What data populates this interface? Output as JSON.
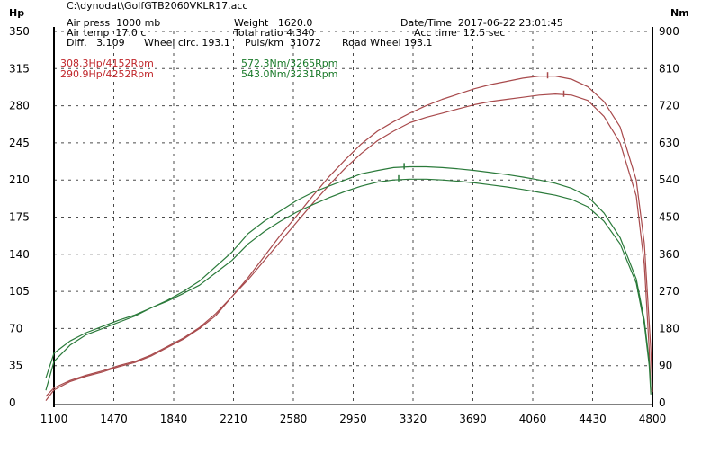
{
  "file_path": "C:\\dynodat\\GolfGTB2060VKLR17.acc",
  "info": [
    {
      "label": "Air press",
      "value": "1000 mb"
    },
    {
      "label": "Air temp",
      "value": "17.0 c"
    },
    {
      "label": "Diff.",
      "value": "3.109"
    },
    {
      "label": "Wheel circ.",
      "value": "193.1"
    },
    {
      "label": "Weight",
      "value": "1620.0"
    },
    {
      "label": "Total ratio",
      "value": "4.340"
    },
    {
      "label": "Puls/km",
      "value": "31072"
    },
    {
      "label": "Road Wheel",
      "value": "193.1"
    },
    {
      "label": "Date/Time",
      "value": "2017-06-22 23:01:45"
    },
    {
      "label": "Acc time",
      "value": "12.5 sec"
    }
  ],
  "annotations": {
    "power": [
      "308.3Hp/4152Rpm",
      "290.9Hp/4252Rpm"
    ],
    "torque": [
      "572.3Nm/3265Rpm",
      "543.0Nm/3231Rpm"
    ]
  },
  "colors": {
    "power": "#a84a4c",
    "torque": "#2a7a3a",
    "power_text": "#c0262b",
    "torque_text": "#1a7a2a"
  },
  "chart_data": {
    "type": "line",
    "x_ticks": [
      1100,
      1470,
      1840,
      2210,
      2580,
      2950,
      3320,
      3690,
      4060,
      4430,
      4800
    ],
    "xlim": [
      1100,
      4800
    ],
    "left_axis": {
      "label": "Hp",
      "ticks": [
        0,
        35,
        70,
        105,
        140,
        175,
        210,
        245,
        280,
        315,
        350
      ],
      "lim": [
        0,
        350
      ]
    },
    "right_axis": {
      "label": "Nm",
      "ticks": [
        0,
        90,
        180,
        270,
        360,
        450,
        540,
        630,
        720,
        810,
        900
      ],
      "lim": [
        0,
        900
      ]
    },
    "grid": true,
    "series": [
      {
        "kind": "power",
        "axis": "left",
        "peak": [
          4152,
          308.3
        ],
        "x": [
          1050,
          1100,
          1200,
          1300,
          1400,
          1500,
          1600,
          1700,
          1800,
          1900,
          2000,
          2100,
          2200,
          2300,
          2400,
          2500,
          2600,
          2700,
          2800,
          2900,
          3000,
          3100,
          3200,
          3300,
          3400,
          3500,
          3600,
          3700,
          3800,
          3900,
          4000,
          4100,
          4200,
          4300,
          4400,
          4500,
          4600,
          4700,
          4750,
          4790,
          4800
        ],
        "y": [
          2,
          12,
          20,
          25,
          29,
          34,
          38,
          44,
          52,
          60,
          70,
          82,
          100,
          118,
          138,
          158,
          176,
          195,
          213,
          229,
          244,
          256,
          265,
          273,
          280,
          286,
          291,
          296,
          300,
          303,
          306,
          308,
          308,
          305,
          298,
          284,
          260,
          210,
          150,
          50,
          10
        ]
      },
      {
        "kind": "power",
        "axis": "left",
        "peak": [
          4252,
          290.9
        ],
        "x": [
          1050,
          1100,
          1200,
          1300,
          1400,
          1500,
          1600,
          1700,
          1800,
          1900,
          2000,
          2100,
          2200,
          2300,
          2400,
          2500,
          2600,
          2700,
          2800,
          2900,
          3000,
          3100,
          3200,
          3300,
          3400,
          3500,
          3600,
          3700,
          3800,
          3900,
          4000,
          4100,
          4200,
          4300,
          4400,
          4500,
          4600,
          4700,
          4750,
          4780,
          4790
        ],
        "y": [
          6,
          14,
          21,
          26,
          30,
          35,
          39,
          45,
          53,
          61,
          71,
          84,
          100,
          116,
          134,
          152,
          170,
          188,
          205,
          221,
          235,
          247,
          256,
          264,
          269,
          273,
          277,
          281,
          284,
          286,
          288,
          290,
          291,
          290,
          285,
          270,
          245,
          195,
          130,
          50,
          10
        ]
      },
      {
        "kind": "torque",
        "axis": "right",
        "peak": [
          3265,
          572.3
        ],
        "x": [
          1050,
          1100,
          1200,
          1300,
          1400,
          1500,
          1600,
          1700,
          1800,
          1900,
          2000,
          2100,
          2200,
          2300,
          2400,
          2500,
          2600,
          2700,
          2800,
          2900,
          3000,
          3100,
          3200,
          3300,
          3400,
          3500,
          3600,
          3700,
          3800,
          3900,
          4000,
          4100,
          4200,
          4300,
          4400,
          4500,
          4600,
          4700,
          4750,
          4780,
          4790
        ],
        "y": [
          30,
          100,
          140,
          165,
          180,
          195,
          210,
          230,
          248,
          270,
          295,
          330,
          365,
          410,
          440,
          465,
          490,
          510,
          525,
          540,
          555,
          563,
          570,
          572,
          572,
          570,
          567,
          563,
          558,
          553,
          547,
          540,
          532,
          520,
          500,
          460,
          400,
          300,
          200,
          100,
          30
        ]
      },
      {
        "kind": "torque",
        "axis": "right",
        "peak": [
          3231,
          543.0
        ],
        "x": [
          1050,
          1100,
          1200,
          1300,
          1400,
          1500,
          1600,
          1700,
          1800,
          1900,
          2000,
          2100,
          2200,
          2300,
          2400,
          2500,
          2600,
          2700,
          2800,
          2900,
          3000,
          3100,
          3200,
          3300,
          3400,
          3500,
          3600,
          3700,
          3800,
          3900,
          4000,
          4100,
          4200,
          4300,
          4400,
          4500,
          4600,
          4700,
          4750,
          4780,
          4790
        ],
        "y": [
          60,
          120,
          150,
          170,
          185,
          200,
          213,
          230,
          246,
          265,
          285,
          315,
          345,
          385,
          415,
          440,
          462,
          480,
          497,
          512,
          525,
          535,
          540,
          542,
          542,
          540,
          537,
          533,
          528,
          523,
          517,
          510,
          503,
          493,
          475,
          440,
          385,
          290,
          190,
          90,
          20
        ]
      }
    ]
  }
}
